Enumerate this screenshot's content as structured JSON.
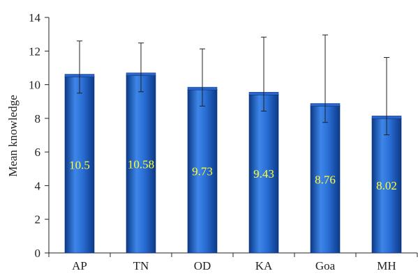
{
  "chart_data": {
    "type": "bar",
    "title": "",
    "xlabel": "",
    "ylabel": "Mean knowledge",
    "categories": [
      "AP",
      "TN",
      "OD",
      "KA",
      "Goa",
      "MH"
    ],
    "series": [
      {
        "values": [
          10.5,
          10.58,
          9.73,
          9.43,
          8.76,
          8.02
        ],
        "data_labels": [
          "10.5",
          "10.58",
          "9.73",
          "9.43",
          "8.76",
          "8.02"
        ],
        "error_upper": [
          2.1,
          1.9,
          2.4,
          3.4,
          4.2,
          3.6
        ],
        "error_lower": [
          1.0,
          1.0,
          1.0,
          1.0,
          1.0,
          1.0
        ]
      }
    ],
    "ylim": [
      0,
      14
    ],
    "yticks": [
      "0",
      "2",
      "4",
      "6",
      "8",
      "10",
      "12",
      "14"
    ],
    "grid": false,
    "legend": "none",
    "colors": {
      "bar": "#1f5fc4",
      "bar_highlight": "#3d86e8",
      "bar_shadow": "#0d3a88",
      "data_label": "#ffff33",
      "axis": "#222222"
    }
  }
}
